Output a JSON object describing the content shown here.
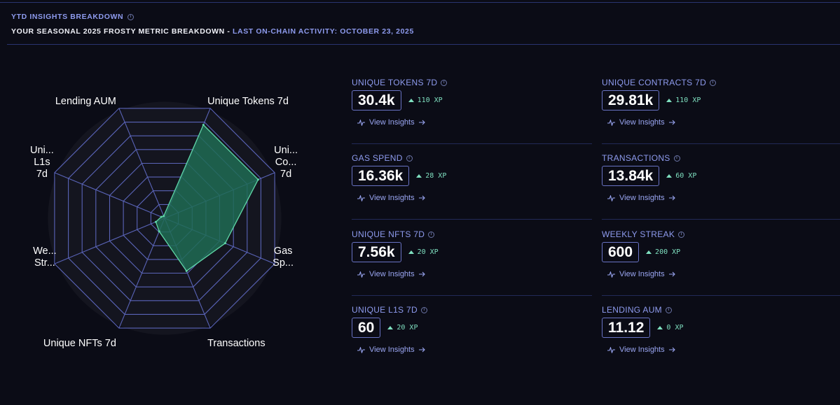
{
  "header": {
    "title": "YTD INSIGHTS BREAKDOWN",
    "subtitle": "YOUR SEASONAL 2025 FROSTY METRIC BREAKDOWN",
    "separator": " - ",
    "activity": "LAST ON-CHAIN ACTIVITY: OCTOBER 23, 2025"
  },
  "chart_data": {
    "type": "radar",
    "axes": [
      "Unique Tokens 7d",
      "Unique Contracts 7d",
      "Gas Spend",
      "Transactions",
      "Unique NFTs 7d",
      "Weekly Streak",
      "Unique L1s 7d",
      "Lending AUM"
    ],
    "axis_labels": [
      [
        "Unique Tokens 7d"
      ],
      [
        "Uni...",
        "Co...",
        "7d"
      ],
      [
        "Gas",
        "Sp..."
      ],
      [
        "Transactions"
      ],
      [
        "Unique NFTs 7d"
      ],
      [
        "We...",
        "Str..."
      ],
      [
        "Uni...",
        "L1s",
        "7d"
      ],
      [
        "Lending AUM"
      ]
    ],
    "values": [
      0.85,
      0.85,
      0.55,
      0.48,
      0.12,
      0.08,
      0.03,
      0.02
    ],
    "range": [
      0,
      1
    ],
    "rings": 8,
    "fill_color": "#1f6b54",
    "stroke_color": "#5fd6a6",
    "grid_color": "#5a64b8",
    "label_color": "#ffffff"
  },
  "metrics": [
    {
      "label": "UNIQUE TOKENS 7D",
      "value": "30.4k",
      "xp": "110 XP",
      "link": "View Insights"
    },
    {
      "label": "UNIQUE CONTRACTS 7D",
      "value": "29.81k",
      "xp": "110 XP",
      "link": "View Insights"
    },
    {
      "label": "GAS SPEND",
      "value": "16.36k",
      "xp": "28 XP",
      "link": "View Insights"
    },
    {
      "label": "TRANSACTIONS",
      "value": "13.84k",
      "xp": "60 XP",
      "link": "View Insights"
    },
    {
      "label": "UNIQUE NFTS 7D",
      "value": "7.56k",
      "xp": "20 XP",
      "link": "View Insights"
    },
    {
      "label": "WEEKLY STREAK",
      "value": "600",
      "xp": "200 XP",
      "link": "View Insights"
    },
    {
      "label": "UNIQUE L1S 7D",
      "value": "60",
      "xp": "20 XP",
      "link": "View Insights"
    },
    {
      "label": "LENDING AUM",
      "value": "11.12",
      "xp": "0 XP",
      "link": "View Insights"
    }
  ],
  "icons": {
    "info": "info-icon",
    "xp_up": "triangle-up-icon",
    "insights": "activity-icon",
    "arrow": "arrow-right-icon"
  }
}
